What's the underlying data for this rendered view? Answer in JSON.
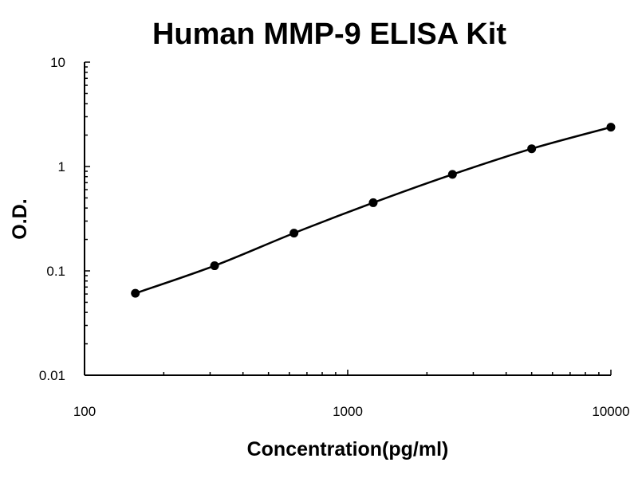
{
  "chart_data": {
    "type": "line",
    "title": "Human MMP-9 ELISA Kit",
    "xlabel": "Concentration(pg/ml)",
    "ylabel": "O.D.",
    "xscale": "log",
    "yscale": "log",
    "xlim": [
      100,
      10000
    ],
    "ylim": [
      0.01,
      10
    ],
    "xticks": [
      "100",
      "1000",
      "10000"
    ],
    "yticks": [
      "10",
      "1",
      "0.1",
      "0.01"
    ],
    "grid": false,
    "legend": "none",
    "series": [
      {
        "x": [
          156,
          312,
          625,
          1250,
          2500,
          5000,
          10000
        ],
        "y": [
          0.061,
          0.112,
          0.23,
          0.45,
          0.84,
          1.48,
          2.38
        ]
      }
    ],
    "colors": {
      "line": "#000000",
      "marker": "#000000",
      "axis": "#000000"
    }
  }
}
